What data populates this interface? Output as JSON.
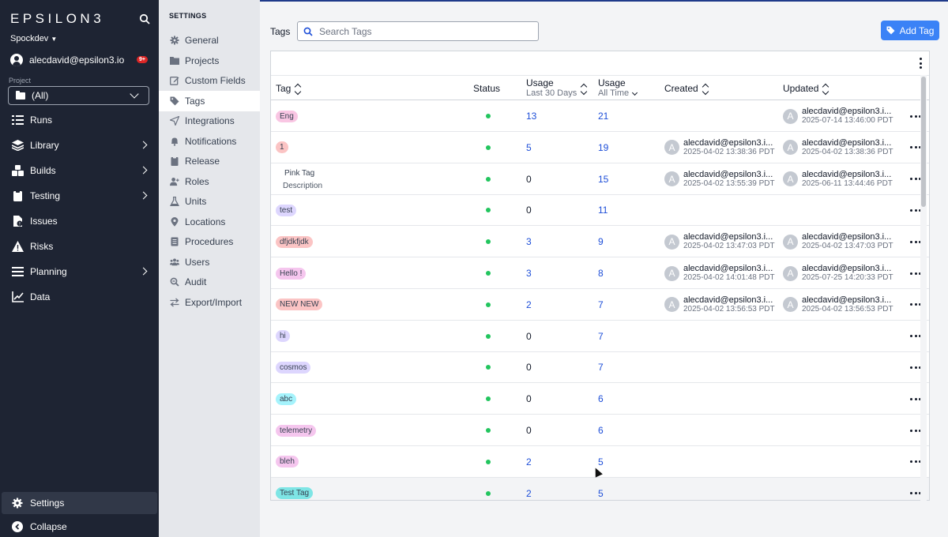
{
  "app": {
    "logo_text": "EPSILON3",
    "workspace": "Spockdev",
    "user_email": "alecdavid@epsilon3.io",
    "notification_badge": "9+",
    "project_label": "Project",
    "project_value": "(All)"
  },
  "nav": {
    "items": [
      {
        "label": "Runs",
        "icon": "runs-icon"
      },
      {
        "label": "Library",
        "icon": "library-icon"
      },
      {
        "label": "Builds",
        "icon": "builds-icon"
      },
      {
        "label": "Testing",
        "icon": "testing-icon"
      },
      {
        "label": "Issues",
        "icon": "issues-icon"
      },
      {
        "label": "Risks",
        "icon": "risks-icon"
      },
      {
        "label": "Planning",
        "icon": "planning-icon"
      },
      {
        "label": "Data",
        "icon": "data-icon"
      }
    ],
    "settings_label": "Settings",
    "collapse_label": "Collapse"
  },
  "settings": {
    "title": "SETTINGS",
    "items": [
      {
        "label": "General",
        "icon": "gear-icon"
      },
      {
        "label": "Projects",
        "icon": "folder-icon"
      },
      {
        "label": "Custom Fields",
        "icon": "edit-icon"
      },
      {
        "label": "Tags",
        "icon": "tag-icon"
      },
      {
        "label": "Integrations",
        "icon": "send-icon"
      },
      {
        "label": "Notifications",
        "icon": "bell-icon"
      },
      {
        "label": "Release",
        "icon": "clipboard-icon"
      },
      {
        "label": "Roles",
        "icon": "user-plus-icon"
      },
      {
        "label": "Units",
        "icon": "flask-icon"
      },
      {
        "label": "Locations",
        "icon": "map-pin-icon"
      },
      {
        "label": "Procedures",
        "icon": "list-icon"
      },
      {
        "label": "Users",
        "icon": "users-icon"
      },
      {
        "label": "Audit",
        "icon": "search-doc-icon"
      },
      {
        "label": "Export/Import",
        "icon": "swap-icon"
      }
    ],
    "active": "Tags"
  },
  "toolbar": {
    "label": "Tags",
    "search_placeholder": "Search Tags",
    "add_button_label": "Add Tag"
  },
  "table": {
    "headers": {
      "tag": "Tag",
      "status": "Status",
      "usage30_line1": "Usage",
      "usage30_line2": "Last 30 Days",
      "usageAll_line1": "Usage",
      "usageAll_line2": "All Time",
      "created": "Created",
      "updated": "Updated"
    },
    "rows": [
      {
        "tag": "Eng",
        "color": "#f9c6e3",
        "desc": "",
        "usage30": "13",
        "usageAll": "21",
        "created_user": "",
        "created_date": "",
        "updated_user": "alecdavid@epsilon3.i...",
        "updated_date": "2025-07-14 13:46:00 PDT"
      },
      {
        "tag": "1",
        "color": "#fbc4c4",
        "desc": "",
        "usage30": "5",
        "usageAll": "19",
        "created_user": "alecdavid@epsilon3.i...",
        "created_date": "2025-04-02 13:38:36 PDT",
        "updated_user": "alecdavid@epsilon3.i...",
        "updated_date": "2025-04-02 13:38:36 PDT"
      },
      {
        "tag": "Pink Tag",
        "color": "#ffffff",
        "desc": "Description",
        "usage30": "0",
        "usageAll": "15",
        "created_user": "alecdavid@epsilon3.i...",
        "created_date": "2025-04-02 13:55:39 PDT",
        "updated_user": "alecdavid@epsilon3.i...",
        "updated_date": "2025-06-11 13:44:46 PDT"
      },
      {
        "tag": "test",
        "color": "#ddd6fe",
        "desc": "",
        "usage30": "0",
        "usageAll": "11",
        "created_user": "",
        "created_date": "",
        "updated_user": "",
        "updated_date": ""
      },
      {
        "tag": "dfjdkfjdk",
        "color": "#fbc4c4",
        "desc": "",
        "usage30": "3",
        "usageAll": "9",
        "created_user": "alecdavid@epsilon3.i...",
        "created_date": "2025-04-02 13:47:03 PDT",
        "updated_user": "alecdavid@epsilon3.i...",
        "updated_date": "2025-04-02 13:47:03 PDT"
      },
      {
        "tag": "Hello !",
        "color": "#f5c6ee",
        "desc": "",
        "usage30": "3",
        "usageAll": "8",
        "created_user": "alecdavid@epsilon3.i...",
        "created_date": "2025-04-02 14:01:48 PDT",
        "updated_user": "alecdavid@epsilon3.i...",
        "updated_date": "2025-07-25 14:20:33 PDT"
      },
      {
        "tag": "NEW NEW",
        "color": "#fbc4c4",
        "desc": "",
        "usage30": "2",
        "usageAll": "7",
        "created_user": "alecdavid@epsilon3.i...",
        "created_date": "2025-04-02 13:56:53 PDT",
        "updated_user": "alecdavid@epsilon3.i...",
        "updated_date": "2025-04-02 13:56:53 PDT"
      },
      {
        "tag": "hi",
        "color": "#ddd6fe",
        "desc": "",
        "usage30": "0",
        "usageAll": "7",
        "created_user": "",
        "created_date": "",
        "updated_user": "",
        "updated_date": ""
      },
      {
        "tag": "cosmos",
        "color": "#ddd6fe",
        "desc": "",
        "usage30": "0",
        "usageAll": "7",
        "created_user": "",
        "created_date": "",
        "updated_user": "",
        "updated_date": ""
      },
      {
        "tag": "abc",
        "color": "#a5f3fc",
        "desc": "",
        "usage30": "0",
        "usageAll": "6",
        "created_user": "",
        "created_date": "",
        "updated_user": "",
        "updated_date": ""
      },
      {
        "tag": "telemetry",
        "color": "#f5c6ee",
        "desc": "",
        "usage30": "0",
        "usageAll": "6",
        "created_user": "",
        "created_date": "",
        "updated_user": "",
        "updated_date": ""
      },
      {
        "tag": "bleh",
        "color": "#f5c6ee",
        "desc": "",
        "usage30": "2",
        "usageAll": "5",
        "created_user": "",
        "created_date": "",
        "updated_user": "",
        "updated_date": ""
      },
      {
        "tag": "Test Tag",
        "color": "#7ee5e5",
        "desc": "",
        "usage30": "2",
        "usageAll": "5",
        "created_user": "",
        "created_date": "",
        "updated_user": "",
        "updated_date": ""
      }
    ],
    "avatar_letter": "A"
  },
  "colors": {
    "nav_bg": "#1e2433",
    "accent": "#3b82f6",
    "status_active": "#22c55e",
    "link": "#1d4ed8"
  }
}
